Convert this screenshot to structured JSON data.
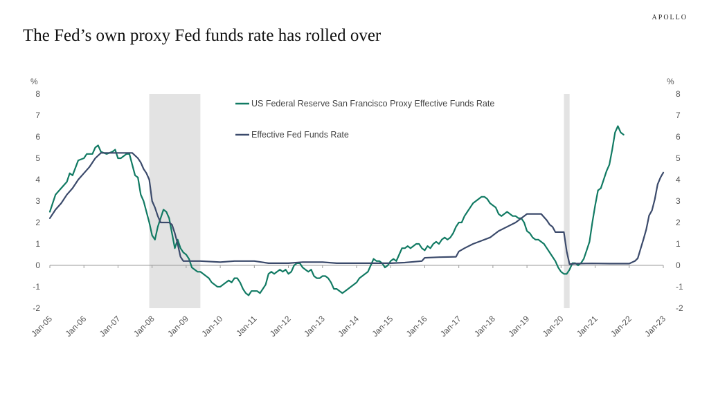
{
  "brand": "APOLLO",
  "title": "The Fed’s own proxy Fed funds rate has rolled over",
  "chart_data": {
    "type": "line",
    "title": "The Fed’s own proxy Fed funds rate has rolled over",
    "y_unit_left": "%",
    "y_unit_right": "%",
    "ylim": [
      -2,
      8
    ],
    "yticks": [
      -2,
      -1,
      0,
      1,
      2,
      3,
      4,
      5,
      6,
      7,
      8
    ],
    "xlim": [
      "2005-01",
      "2023-01"
    ],
    "xtick_labels": [
      "Jan-05",
      "Jan-06",
      "Jan-07",
      "Jan-08",
      "Jan-09",
      "Jan-10",
      "Jan-11",
      "Jan-12",
      "Jan-13",
      "Jan-14",
      "Jan-15",
      "Jan-16",
      "Jan-17",
      "Jan-18",
      "Jan-19",
      "Jan-20",
      "Jan-21",
      "Jan-22",
      "Jan-23"
    ],
    "grid": false,
    "legend_position": "top-center",
    "shaded_periods": [
      {
        "start": "2007-12",
        "end": "2009-06"
      },
      {
        "start": "2020-02",
        "end": "2020-04"
      }
    ],
    "series": [
      {
        "name": "US Federal Reserve San Francisco Proxy Effective Funds Rate",
        "color": "#117a63",
        "points": [
          [
            "2005-01",
            2.5
          ],
          [
            "2005-03",
            3.3
          ],
          [
            "2005-05",
            3.6
          ],
          [
            "2005-07",
            3.9
          ],
          [
            "2005-08",
            4.3
          ],
          [
            "2005-09",
            4.2
          ],
          [
            "2005-11",
            4.9
          ],
          [
            "2006-01",
            5.0
          ],
          [
            "2006-02",
            5.2
          ],
          [
            "2006-04",
            5.2
          ],
          [
            "2006-05",
            5.5
          ],
          [
            "2006-06",
            5.6
          ],
          [
            "2006-07",
            5.3
          ],
          [
            "2006-09",
            5.2
          ],
          [
            "2006-11",
            5.3
          ],
          [
            "2006-12",
            5.4
          ],
          [
            "2007-01",
            5.0
          ],
          [
            "2007-02",
            5.0
          ],
          [
            "2007-04",
            5.2
          ],
          [
            "2007-05",
            5.2
          ],
          [
            "2007-06",
            4.7
          ],
          [
            "2007-07",
            4.2
          ],
          [
            "2007-08",
            4.1
          ],
          [
            "2007-09",
            3.3
          ],
          [
            "2007-10",
            3.0
          ],
          [
            "2007-11",
            2.5
          ],
          [
            "2007-12",
            2.0
          ],
          [
            "2008-01",
            1.4
          ],
          [
            "2008-02",
            1.2
          ],
          [
            "2008-03",
            1.8
          ],
          [
            "2008-05",
            2.6
          ],
          [
            "2008-06",
            2.5
          ],
          [
            "2008-07",
            2.2
          ],
          [
            "2008-08",
            1.5
          ],
          [
            "2008-09",
            0.8
          ],
          [
            "2008-10",
            1.2
          ],
          [
            "2008-11",
            0.8
          ],
          [
            "2008-12",
            0.6
          ],
          [
            "2009-01",
            0.5
          ],
          [
            "2009-02",
            0.3
          ],
          [
            "2009-03",
            -0.1
          ],
          [
            "2009-04",
            -0.2
          ],
          [
            "2009-05",
            -0.3
          ],
          [
            "2009-06",
            -0.3
          ],
          [
            "2009-07",
            -0.4
          ],
          [
            "2009-08",
            -0.5
          ],
          [
            "2009-09",
            -0.6
          ],
          [
            "2009-10",
            -0.8
          ],
          [
            "2009-11",
            -0.9
          ],
          [
            "2009-12",
            -1.0
          ],
          [
            "2010-01",
            -1.0
          ],
          [
            "2010-02",
            -0.9
          ],
          [
            "2010-04",
            -0.7
          ],
          [
            "2010-05",
            -0.8
          ],
          [
            "2010-06",
            -0.6
          ],
          [
            "2010-07",
            -0.6
          ],
          [
            "2010-08",
            -0.8
          ],
          [
            "2010-09",
            -1.1
          ],
          [
            "2010-10",
            -1.3
          ],
          [
            "2010-11",
            -1.4
          ],
          [
            "2010-12",
            -1.2
          ],
          [
            "2011-01",
            -1.2
          ],
          [
            "2011-02",
            -1.2
          ],
          [
            "2011-03",
            -1.3
          ],
          [
            "2011-04",
            -1.1
          ],
          [
            "2011-05",
            -0.9
          ],
          [
            "2011-06",
            -0.4
          ],
          [
            "2011-07",
            -0.3
          ],
          [
            "2011-08",
            -0.4
          ],
          [
            "2011-09",
            -0.3
          ],
          [
            "2011-10",
            -0.2
          ],
          [
            "2011-11",
            -0.3
          ],
          [
            "2011-12",
            -0.2
          ],
          [
            "2012-01",
            -0.4
          ],
          [
            "2012-02",
            -0.3
          ],
          [
            "2012-03",
            0.0
          ],
          [
            "2012-04",
            0.1
          ],
          [
            "2012-05",
            0.1
          ],
          [
            "2012-06",
            -0.1
          ],
          [
            "2012-07",
            -0.2
          ],
          [
            "2012-08",
            -0.3
          ],
          [
            "2012-09",
            -0.2
          ],
          [
            "2012-10",
            -0.5
          ],
          [
            "2012-11",
            -0.6
          ],
          [
            "2012-12",
            -0.6
          ],
          [
            "2013-01",
            -0.5
          ],
          [
            "2013-02",
            -0.5
          ],
          [
            "2013-03",
            -0.6
          ],
          [
            "2013-04",
            -0.8
          ],
          [
            "2013-05",
            -1.1
          ],
          [
            "2013-06",
            -1.1
          ],
          [
            "2013-07",
            -1.2
          ],
          [
            "2013-08",
            -1.3
          ],
          [
            "2013-09",
            -1.2
          ],
          [
            "2013-10",
            -1.1
          ],
          [
            "2013-11",
            -1.0
          ],
          [
            "2013-12",
            -0.9
          ],
          [
            "2014-01",
            -0.8
          ],
          [
            "2014-02",
            -0.6
          ],
          [
            "2014-03",
            -0.5
          ],
          [
            "2014-04",
            -0.4
          ],
          [
            "2014-05",
            -0.3
          ],
          [
            "2014-06",
            0.0
          ],
          [
            "2014-07",
            0.3
          ],
          [
            "2014-08",
            0.2
          ],
          [
            "2014-09",
            0.2
          ],
          [
            "2014-10",
            0.1
          ],
          [
            "2014-11",
            -0.1
          ],
          [
            "2014-12",
            0.0
          ],
          [
            "2015-01",
            0.2
          ],
          [
            "2015-02",
            0.3
          ],
          [
            "2015-03",
            0.2
          ],
          [
            "2015-04",
            0.5
          ],
          [
            "2015-05",
            0.8
          ],
          [
            "2015-06",
            0.8
          ],
          [
            "2015-07",
            0.9
          ],
          [
            "2015-08",
            0.8
          ],
          [
            "2015-09",
            0.9
          ],
          [
            "2015-10",
            1.0
          ],
          [
            "2015-11",
            1.0
          ],
          [
            "2015-12",
            0.8
          ],
          [
            "2016-01",
            0.7
          ],
          [
            "2016-02",
            0.9
          ],
          [
            "2016-03",
            0.8
          ],
          [
            "2016-04",
            1.0
          ],
          [
            "2016-05",
            1.1
          ],
          [
            "2016-06",
            1.0
          ],
          [
            "2016-07",
            1.2
          ],
          [
            "2016-08",
            1.3
          ],
          [
            "2016-09",
            1.2
          ],
          [
            "2016-10",
            1.3
          ],
          [
            "2016-11",
            1.5
          ],
          [
            "2016-12",
            1.8
          ],
          [
            "2017-01",
            2.0
          ],
          [
            "2017-02",
            2.0
          ],
          [
            "2017-03",
            2.3
          ],
          [
            "2017-04",
            2.5
          ],
          [
            "2017-05",
            2.7
          ],
          [
            "2017-06",
            2.9
          ],
          [
            "2017-07",
            3.0
          ],
          [
            "2017-08",
            3.1
          ],
          [
            "2017-09",
            3.2
          ],
          [
            "2017-10",
            3.2
          ],
          [
            "2017-11",
            3.1
          ],
          [
            "2017-12",
            2.9
          ],
          [
            "2018-01",
            2.8
          ],
          [
            "2018-02",
            2.7
          ],
          [
            "2018-03",
            2.4
          ],
          [
            "2018-04",
            2.3
          ],
          [
            "2018-05",
            2.4
          ],
          [
            "2018-06",
            2.5
          ],
          [
            "2018-07",
            2.4
          ],
          [
            "2018-08",
            2.3
          ],
          [
            "2018-09",
            2.3
          ],
          [
            "2018-10",
            2.2
          ],
          [
            "2018-11",
            2.2
          ],
          [
            "2018-12",
            2.0
          ],
          [
            "2019-01",
            1.6
          ],
          [
            "2019-02",
            1.5
          ],
          [
            "2019-03",
            1.3
          ],
          [
            "2019-04",
            1.2
          ],
          [
            "2019-05",
            1.2
          ],
          [
            "2019-06",
            1.1
          ],
          [
            "2019-07",
            1.0
          ],
          [
            "2019-08",
            0.8
          ],
          [
            "2019-09",
            0.6
          ],
          [
            "2019-10",
            0.4
          ],
          [
            "2019-11",
            0.2
          ],
          [
            "2019-12",
            -0.1
          ],
          [
            "2020-01",
            -0.3
          ],
          [
            "2020-02",
            -0.4
          ],
          [
            "2020-03",
            -0.4
          ],
          [
            "2020-04",
            -0.2
          ],
          [
            "2020-05",
            0.1
          ],
          [
            "2020-06",
            0.1
          ],
          [
            "2020-07",
            0.0
          ],
          [
            "2020-08",
            0.1
          ],
          [
            "2020-09",
            0.3
          ],
          [
            "2020-10",
            0.7
          ],
          [
            "2020-11",
            1.1
          ],
          [
            "2020-12",
            2.0
          ],
          [
            "2021-01",
            2.8
          ],
          [
            "2021-02",
            3.5
          ],
          [
            "2021-03",
            3.6
          ],
          [
            "2021-04",
            4.0
          ],
          [
            "2021-05",
            4.4
          ],
          [
            "2021-06",
            4.7
          ],
          [
            "2021-07",
            5.4
          ],
          [
            "2021-08",
            6.2
          ],
          [
            "2021-09",
            6.5
          ],
          [
            "2021-10",
            6.2
          ],
          [
            "2021-11",
            6.1
          ]
        ]
      },
      {
        "name": "Effective Fed Funds Rate",
        "color": "#3b4a6b",
        "points": [
          [
            "2005-01",
            2.2
          ],
          [
            "2005-03",
            2.6
          ],
          [
            "2005-05",
            2.9
          ],
          [
            "2005-07",
            3.3
          ],
          [
            "2005-09",
            3.6
          ],
          [
            "2005-11",
            4.0
          ],
          [
            "2006-01",
            4.3
          ],
          [
            "2006-03",
            4.6
          ],
          [
            "2006-05",
            5.0
          ],
          [
            "2006-07",
            5.25
          ],
          [
            "2006-12",
            5.25
          ],
          [
            "2007-06",
            5.25
          ],
          [
            "2007-08",
            5.0
          ],
          [
            "2007-09",
            4.8
          ],
          [
            "2007-10",
            4.5
          ],
          [
            "2007-11",
            4.3
          ],
          [
            "2007-12",
            4.0
          ],
          [
            "2008-01",
            3.0
          ],
          [
            "2008-02",
            2.7
          ],
          [
            "2008-03",
            2.3
          ],
          [
            "2008-04",
            2.0
          ],
          [
            "2008-07",
            2.0
          ],
          [
            "2008-08",
            1.9
          ],
          [
            "2008-09",
            1.5
          ],
          [
            "2008-10",
            1.0
          ],
          [
            "2008-11",
            0.4
          ],
          [
            "2008-12",
            0.2
          ],
          [
            "2009-01",
            0.2
          ],
          [
            "2009-06",
            0.2
          ],
          [
            "2010-01",
            0.15
          ],
          [
            "2010-06",
            0.2
          ],
          [
            "2011-01",
            0.2
          ],
          [
            "2011-06",
            0.1
          ],
          [
            "2012-01",
            0.1
          ],
          [
            "2012-06",
            0.15
          ],
          [
            "2013-01",
            0.15
          ],
          [
            "2013-06",
            0.1
          ],
          [
            "2014-01",
            0.1
          ],
          [
            "2014-06",
            0.1
          ],
          [
            "2015-01",
            0.1
          ],
          [
            "2015-06",
            0.13
          ],
          [
            "2015-12",
            0.2
          ],
          [
            "2016-01",
            0.35
          ],
          [
            "2016-06",
            0.38
          ],
          [
            "2016-12",
            0.4
          ],
          [
            "2017-01",
            0.65
          ],
          [
            "2017-03",
            0.8
          ],
          [
            "2017-06",
            1.0
          ],
          [
            "2017-09",
            1.15
          ],
          [
            "2017-12",
            1.3
          ],
          [
            "2018-01",
            1.4
          ],
          [
            "2018-03",
            1.6
          ],
          [
            "2018-06",
            1.8
          ],
          [
            "2018-09",
            2.0
          ],
          [
            "2018-12",
            2.3
          ],
          [
            "2019-01",
            2.4
          ],
          [
            "2019-06",
            2.4
          ],
          [
            "2019-08",
            2.1
          ],
          [
            "2019-09",
            1.9
          ],
          [
            "2019-10",
            1.8
          ],
          [
            "2019-11",
            1.55
          ],
          [
            "2020-02",
            1.55
          ],
          [
            "2020-03",
            0.65
          ],
          [
            "2020-04",
            0.05
          ],
          [
            "2020-06",
            0.08
          ],
          [
            "2020-12",
            0.09
          ],
          [
            "2021-06",
            0.08
          ],
          [
            "2021-12",
            0.08
          ],
          [
            "2022-01",
            0.08
          ],
          [
            "2022-03",
            0.2
          ],
          [
            "2022-04",
            0.33
          ],
          [
            "2022-05",
            0.77
          ],
          [
            "2022-06",
            1.21
          ],
          [
            "2022-07",
            1.68
          ],
          [
            "2022-08",
            2.33
          ],
          [
            "2022-09",
            2.56
          ],
          [
            "2022-10",
            3.08
          ],
          [
            "2022-11",
            3.78
          ],
          [
            "2022-12",
            4.1
          ],
          [
            "2023-01",
            4.33
          ]
        ]
      }
    ]
  }
}
